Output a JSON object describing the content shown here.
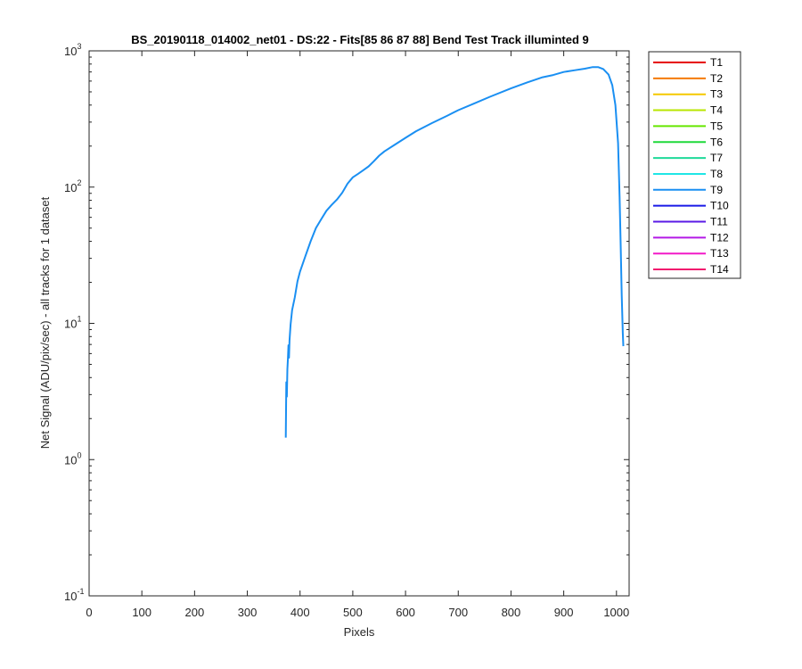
{
  "chart_data": {
    "type": "line",
    "title": "BS_20190118_014002_net01 - DS:22 - Fits[85  86  87  88]   Bend Test       Track illuminted 9",
    "xlabel": "Pixels",
    "ylabel": "Net Signal (ADU/pix/sec) - all tracks for 1 dataset",
    "xlim": [
      0,
      1024
    ],
    "ylim": [
      0.1,
      1000
    ],
    "yscale": "log",
    "grid": false,
    "legend_position": "outside-top-right",
    "x_ticks": [
      {
        "value": 0,
        "label": "0"
      },
      {
        "value": 100,
        "label": "100"
      },
      {
        "value": 200,
        "label": "200"
      },
      {
        "value": 300,
        "label": "300"
      },
      {
        "value": 400,
        "label": "400"
      },
      {
        "value": 500,
        "label": "500"
      },
      {
        "value": 600,
        "label": "600"
      },
      {
        "value": 700,
        "label": "700"
      },
      {
        "value": 800,
        "label": "800"
      },
      {
        "value": 900,
        "label": "900"
      },
      {
        "value": 1000,
        "label": "1000"
      }
    ],
    "y_ticks": [
      {
        "value": 0.1,
        "base": "10",
        "exp": "-1"
      },
      {
        "value": 1,
        "base": "10",
        "exp": "0"
      },
      {
        "value": 10,
        "base": "10",
        "exp": "1"
      },
      {
        "value": 100,
        "base": "10",
        "exp": "2"
      },
      {
        "value": 1000,
        "base": "10",
        "exp": "3"
      }
    ],
    "series": [
      {
        "name": "T1",
        "color": "#e60000",
        "x": [],
        "y": []
      },
      {
        "name": "T2",
        "color": "#f57a00",
        "x": [],
        "y": []
      },
      {
        "name": "T3",
        "color": "#f5c800",
        "x": [],
        "y": []
      },
      {
        "name": "T4",
        "color": "#b8e600",
        "x": [],
        "y": []
      },
      {
        "name": "T5",
        "color": "#66e600",
        "x": [],
        "y": []
      },
      {
        "name": "T6",
        "color": "#1fd93a",
        "x": [],
        "y": []
      },
      {
        "name": "T7",
        "color": "#1fd999",
        "x": [],
        "y": []
      },
      {
        "name": "T8",
        "color": "#1fe6e6",
        "x": [],
        "y": []
      },
      {
        "name": "T9",
        "color": "#1a8ff2",
        "x": [
          373,
          374,
          375,
          376,
          377,
          378,
          379,
          380,
          382,
          385,
          390,
          395,
          400,
          410,
          420,
          430,
          440,
          450,
          460,
          470,
          480,
          490,
          500,
          510,
          520,
          530,
          540,
          550,
          560,
          580,
          600,
          620,
          650,
          680,
          700,
          730,
          760,
          800,
          830,
          860,
          880,
          900,
          920,
          940,
          955,
          965,
          975,
          985,
          992,
          998,
          1003,
          1006,
          1008,
          1010,
          1012,
          1013
        ],
        "y": [
          1.45,
          3.7,
          2.9,
          4.6,
          5.5,
          6.9,
          5.6,
          7.5,
          9.8,
          12.5,
          15.5,
          20.3,
          24,
          31,
          40,
          50,
          58,
          67,
          74,
          81,
          91,
          106,
          118,
          125,
          133,
          142,
          155,
          170,
          183,
          205,
          230,
          257,
          295,
          335,
          367,
          410,
          460,
          530,
          585,
          640,
          665,
          700,
          720,
          740,
          760,
          760,
          735,
          670,
          560,
          400,
          210,
          85,
          38,
          16,
          8.5,
          6.8
        ]
      },
      {
        "name": "T10",
        "color": "#1a1ae6",
        "x": [],
        "y": []
      },
      {
        "name": "T11",
        "color": "#5a1ae6",
        "x": [],
        "y": []
      },
      {
        "name": "T12",
        "color": "#b31ae6",
        "x": [],
        "y": []
      },
      {
        "name": "T13",
        "color": "#f21ac8",
        "x": [],
        "y": []
      },
      {
        "name": "T14",
        "color": "#f21a6e",
        "x": [],
        "y": []
      }
    ]
  }
}
